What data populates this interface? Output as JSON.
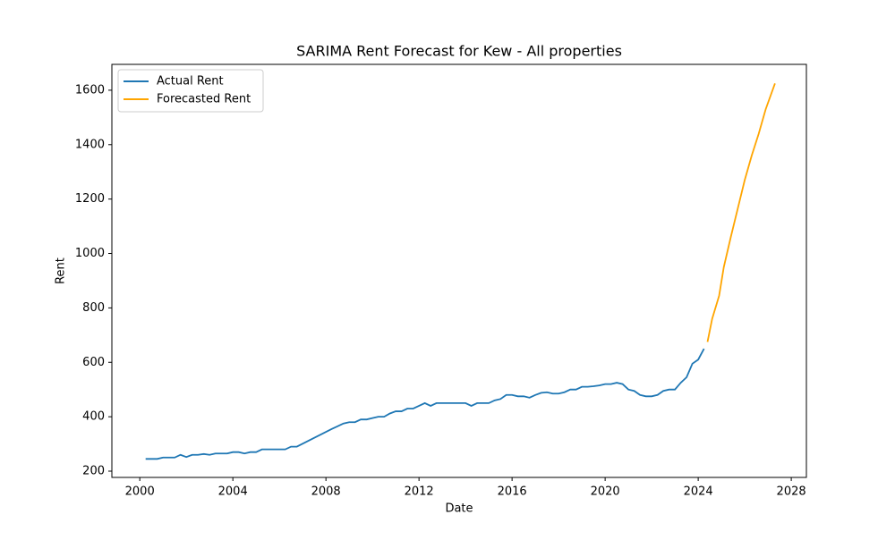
{
  "chart_data": {
    "type": "line",
    "title": "SARIMA Rent Forecast for Kew - All properties",
    "xlabel": "Date",
    "ylabel": "Rent",
    "xlim": [
      1998.8,
      2028.65
    ],
    "xticks": [
      2000,
      2004,
      2008,
      2012,
      2016,
      2020,
      2024,
      2028
    ],
    "ylim": [
      177,
      1695
    ],
    "yticks": [
      200,
      400,
      600,
      800,
      1000,
      1200,
      1400,
      1600
    ],
    "legend": "upper left",
    "series": [
      {
        "name": "Actual Rent",
        "color": "#1f77b4",
        "x": [
          2000.25,
          2000.5,
          2000.75,
          2001,
          2001.25,
          2001.5,
          2001.75,
          2002,
          2002.25,
          2002.5,
          2002.75,
          2003,
          2003.25,
          2003.5,
          2003.75,
          2004,
          2004.25,
          2004.5,
          2004.75,
          2005,
          2005.25,
          2005.5,
          2005.75,
          2006,
          2006.25,
          2006.5,
          2006.75,
          2008.25,
          2008.5,
          2008.75,
          2009,
          2009.25,
          2009.5,
          2009.75,
          2010,
          2010.25,
          2010.5,
          2010.75,
          2011,
          2011.25,
          2011.5,
          2011.75,
          2012,
          2012.25,
          2012.5,
          2012.75,
          2013,
          2013.25,
          2013.5,
          2013.75,
          2014,
          2014.25,
          2014.5,
          2014.75,
          2015,
          2015.25,
          2015.5,
          2015.75,
          2016,
          2016.25,
          2016.5,
          2016.75,
          2017,
          2017.25,
          2017.5,
          2017.75,
          2018,
          2018.25,
          2018.5,
          2018.75,
          2019,
          2019.25,
          2019.5,
          2019.75,
          2020,
          2020.25,
          2020.5,
          2020.75,
          2021,
          2021.25,
          2021.5,
          2021.75,
          2022,
          2022.25,
          2022.5,
          2022.75,
          2023,
          2023.25,
          2023.5,
          2023.75,
          2024,
          2024.25
        ],
        "values": [
          245,
          245,
          245,
          250,
          250,
          250,
          260,
          252,
          260,
          260,
          263,
          260,
          265,
          265,
          265,
          270,
          270,
          265,
          270,
          270,
          280,
          280,
          280,
          280,
          280,
          290,
          290,
          355,
          365,
          375,
          380,
          380,
          390,
          390,
          395,
          400,
          400,
          412,
          420,
          420,
          430,
          430,
          440,
          450,
          440,
          450,
          450,
          450,
          450,
          450,
          450,
          440,
          450,
          450,
          450,
          460,
          465,
          480,
          480,
          475,
          475,
          470,
          480,
          488,
          490,
          485,
          485,
          490,
          500,
          500,
          510,
          510,
          512,
          515,
          520,
          520,
          525,
          520,
          500,
          495,
          480,
          475,
          475,
          480,
          495,
          500,
          500,
          525,
          545,
          595,
          610,
          650
        ]
      },
      {
        "name": "Forecasted Rent",
        "color": "#ffa500",
        "x": [
          2024.4,
          2024.6,
          2024.9,
          2025.1,
          2025.4,
          2025.7,
          2026.0,
          2026.3,
          2026.6,
          2026.9,
          2027.3
        ],
        "values": [
          675,
          760,
          845,
          950,
          1060,
          1165,
          1270,
          1360,
          1440,
          1530,
          1625
        ]
      }
    ]
  }
}
